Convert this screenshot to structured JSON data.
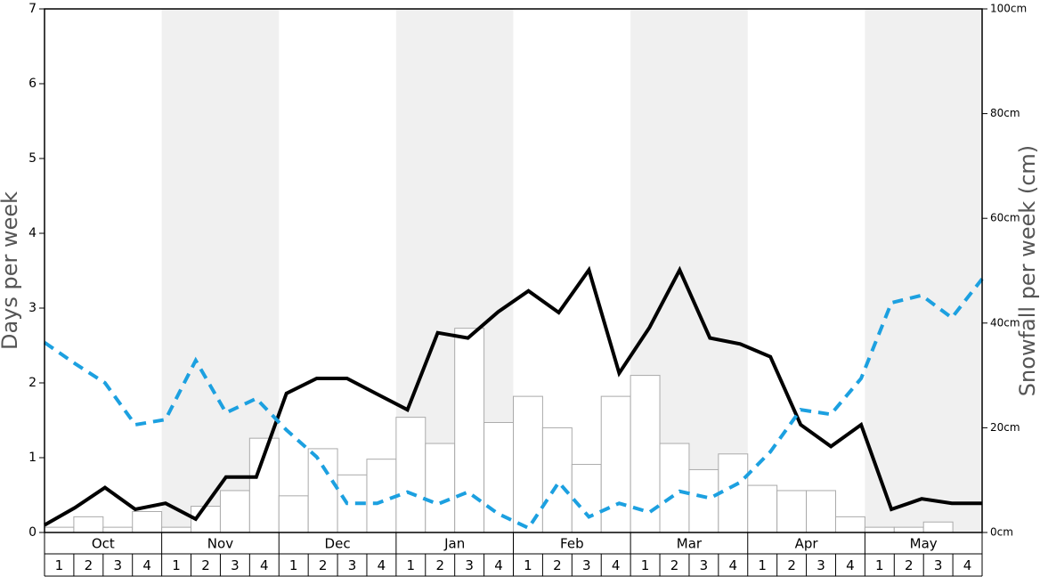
{
  "chart_data": {
    "type": "bar-line",
    "ylabel": "Days per week",
    "y2label": "Snowfall per week (cm)",
    "months": [
      "Oct",
      "Nov",
      "Dec",
      "Jan",
      "Feb",
      "Mar",
      "Apr",
      "May"
    ],
    "categories": [
      "1",
      "2",
      "3",
      "4",
      "1",
      "2",
      "3",
      "4",
      "1",
      "2",
      "3",
      "4",
      "1",
      "2",
      "3",
      "4",
      "1",
      "2",
      "3",
      "4",
      "1",
      "2",
      "3",
      "4",
      "1",
      "2",
      "3",
      "4",
      "1",
      "2",
      "3",
      "4"
    ],
    "ylim": [
      0,
      7
    ],
    "yticks": [
      0,
      1,
      2,
      3,
      4,
      5,
      6,
      7
    ],
    "y2lim": [
      0,
      100
    ],
    "y2ticks": [
      {
        "value": 0,
        "label": "0cm"
      },
      {
        "value": 20,
        "label": "20cm"
      },
      {
        "value": 40,
        "label": "40cm"
      },
      {
        "value": 60,
        "label": "60cm"
      },
      {
        "value": 80,
        "label": "80cm"
      },
      {
        "value": 100,
        "label": "100cm"
      }
    ],
    "band_color": "#f0f0f0",
    "series": [
      {
        "kind": "bar",
        "axis": "y2",
        "color": "#ffffff",
        "stroke": "#aaaaaa",
        "values": [
          1,
          3,
          1,
          4,
          1,
          5,
          8,
          18,
          7,
          16,
          11,
          14,
          22,
          17,
          39,
          21,
          26,
          20,
          13,
          26,
          30,
          17,
          12,
          15,
          9,
          8,
          8,
          3,
          1,
          1,
          2,
          0
        ]
      },
      {
        "kind": "line",
        "axis": "y",
        "color": "#000000",
        "dash": false,
        "values": [
          0.1,
          0.33,
          0.6,
          0.31,
          0.39,
          0.18,
          0.74,
          0.74,
          1.86,
          2.06,
          2.06,
          1.85,
          1.64,
          2.67,
          2.6,
          2.95,
          3.23,
          2.94,
          3.51,
          2.13,
          2.74,
          3.51,
          2.6,
          2.52,
          2.35,
          1.44,
          1.15,
          1.44,
          0.31,
          0.45,
          0.39,
          0.39
        ]
      },
      {
        "kind": "line",
        "axis": "y",
        "color": "#1ca0e0",
        "dash": true,
        "values": [
          2.54,
          2.26,
          2.0,
          1.44,
          1.51,
          2.3,
          1.6,
          1.79,
          1.37,
          1.01,
          0.39,
          0.39,
          0.54,
          0.38,
          0.54,
          0.25,
          0.06,
          0.67,
          0.21,
          0.39,
          0.27,
          0.55,
          0.46,
          0.67,
          1.08,
          1.64,
          1.58,
          2.06,
          3.07,
          3.17,
          2.87,
          3.39
        ]
      }
    ]
  }
}
